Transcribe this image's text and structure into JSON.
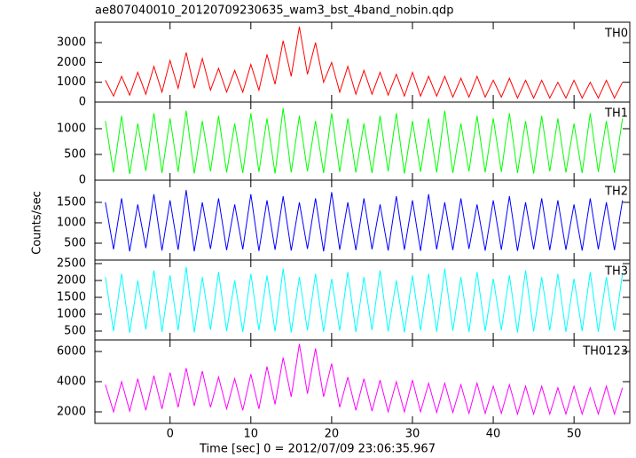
{
  "chart_data": {
    "type": "line",
    "title": "ae807040010_20120709230635_wam3_bst_4band_nobin.qdp",
    "xlabel": "Time [sec] 0 = 2012/07/09 23:06:35.967",
    "ylabel": "Counts/sec",
    "xlim": [
      -9.3,
      56.9
    ],
    "xticks": [
      0,
      10,
      20,
      30,
      40,
      50
    ],
    "x": [
      -8,
      -7,
      -6,
      -5,
      -4,
      -3,
      -2,
      -1,
      0,
      1,
      2,
      3,
      4,
      5,
      6,
      7,
      8,
      9,
      10,
      11,
      12,
      13,
      14,
      15,
      16,
      17,
      18,
      19,
      20,
      21,
      22,
      23,
      24,
      25,
      26,
      27,
      28,
      29,
      30,
      31,
      32,
      33,
      34,
      35,
      36,
      37,
      38,
      39,
      40,
      41,
      42,
      43,
      44,
      45,
      46,
      47,
      48,
      49,
      50,
      51,
      52,
      53,
      54,
      55,
      56
    ],
    "series": [
      {
        "name": "TH0",
        "color": "#ff0000",
        "ylim": [
          0,
          4030
        ],
        "yticks": [
          0,
          1000,
          2000,
          3000
        ],
        "values": [
          1100,
          300,
          1300,
          350,
          1500,
          400,
          1800,
          500,
          2100,
          700,
          2500,
          700,
          2200,
          600,
          1700,
          500,
          1600,
          500,
          1900,
          600,
          2400,
          900,
          3100,
          1300,
          3800,
          1400,
          3000,
          1000,
          2000,
          500,
          1800,
          400,
          1600,
          400,
          1500,
          350,
          1400,
          300,
          1500,
          300,
          1300,
          300,
          1300,
          250,
          1200,
          250,
          1300,
          250,
          1100,
          250,
          1200,
          200,
          1100,
          200,
          1100,
          200,
          1000,
          200,
          1100,
          200,
          1000,
          200,
          1100,
          200,
          1000
        ]
      },
      {
        "name": "TH1",
        "color": "#00ff00",
        "ylim": [
          0,
          1517
        ],
        "yticks": [
          0,
          500,
          1000
        ],
        "values": [
          1150,
          150,
          1250,
          120,
          1100,
          180,
          1300,
          140,
          1200,
          160,
          1350,
          130,
          1150,
          170,
          1250,
          150,
          1100,
          140,
          1300,
          160,
          1200,
          130,
          1400,
          150,
          1250,
          170,
          1150,
          140,
          1300,
          160,
          1200,
          150,
          1100,
          140,
          1250,
          170,
          1300,
          130,
          1150,
          160,
          1200,
          150,
          1350,
          140,
          1100,
          170,
          1250,
          150,
          1200,
          160,
          1300,
          140,
          1150,
          130,
          1250,
          170,
          1200,
          150,
          1100,
          140,
          1300,
          160,
          1150,
          140,
          1200
        ]
      },
      {
        "name": "TH2",
        "color": "#0000ff",
        "ylim": [
          87,
          2043
        ],
        "yticks": [
          500,
          1000,
          1500
        ],
        "values": [
          1500,
          350,
          1600,
          300,
          1450,
          380,
          1700,
          320,
          1550,
          340,
          1800,
          300,
          1500,
          360,
          1600,
          330,
          1450,
          350,
          1700,
          310,
          1550,
          340,
          1650,
          320,
          1500,
          360,
          1600,
          300,
          1750,
          340,
          1500,
          330,
          1600,
          350,
          1450,
          320,
          1650,
          340,
          1550,
          310,
          1700,
          350,
          1500,
          330,
          1600,
          360,
          1450,
          320,
          1550,
          340,
          1650,
          310,
          1500,
          350,
          1600,
          330,
          1550,
          340,
          1450,
          320,
          1600,
          350,
          1500,
          330,
          1550
        ]
      },
      {
        "name": "TH3",
        "color": "#00ffff",
        "ylim": [
          237,
          2605
        ],
        "yticks": [
          500,
          1000,
          1500,
          2000,
          2500
        ],
        "values": [
          2100,
          500,
          2200,
          450,
          2000,
          550,
          2300,
          480,
          2150,
          520,
          2400,
          460,
          2100,
          540,
          2250,
          500,
          2000,
          470,
          2200,
          530,
          2150,
          490,
          2350,
          460,
          2100,
          520,
          2200,
          480,
          2050,
          510,
          2250,
          470,
          2100,
          530,
          2300,
          490,
          2000,
          460,
          2150,
          520,
          2200,
          480,
          2350,
          510,
          2100,
          470,
          2250,
          500,
          2050,
          530,
          2150,
          460,
          2300,
          490,
          2100,
          520,
          2200,
          470,
          2050,
          500,
          2250,
          480,
          2100,
          510,
          2200
        ]
      },
      {
        "name": "TH0123",
        "color": "#ff00ff",
        "ylim": [
          1235,
          6765
        ],
        "yticks": [
          2000,
          4000,
          6000
        ],
        "values": [
          3800,
          2000,
          4000,
          2050,
          4200,
          2100,
          4400,
          2200,
          4600,
          2300,
          4900,
          2400,
          4700,
          2300,
          4300,
          2200,
          4200,
          2100,
          4500,
          2200,
          5000,
          2500,
          5600,
          3000,
          6500,
          3200,
          6200,
          3000,
          5200,
          2300,
          4300,
          2100,
          4200,
          2050,
          4100,
          2000,
          4000,
          2000,
          4100,
          2000,
          3900,
          1950,
          3900,
          1950,
          3800,
          1900,
          3900,
          1900,
          3700,
          1900,
          3800,
          1850,
          3700,
          1850,
          3700,
          1850,
          3600,
          1850,
          3700,
          1850,
          3600,
          1850,
          3700,
          1850,
          3600
        ]
      }
    ]
  }
}
